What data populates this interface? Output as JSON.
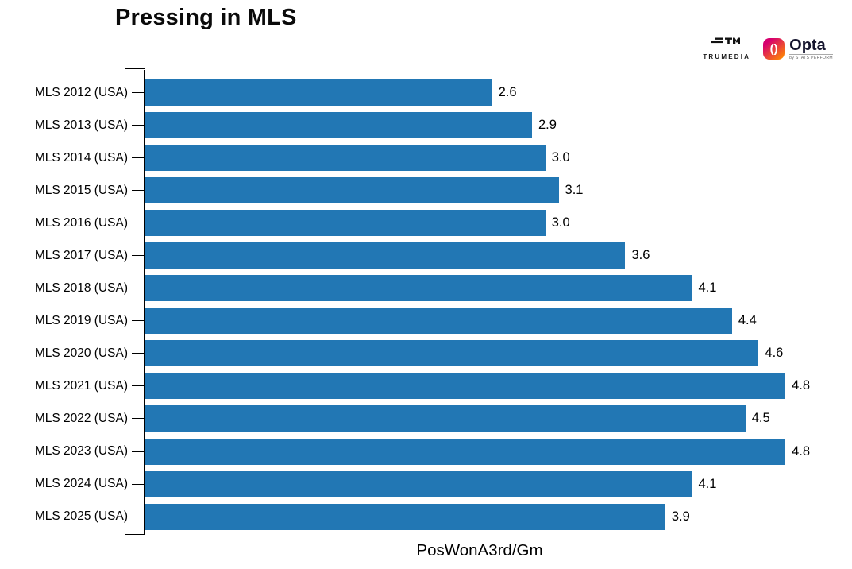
{
  "title": "Pressing in MLS",
  "branding": {
    "trumedia": {
      "name": "TRUMEDIA"
    },
    "opta": {
      "name": "Opta",
      "byline": "by STATS PERFORM",
      "badge_glyph": "()",
      "gradient_start": "#d6006f",
      "gradient_end": "#ff8a00"
    }
  },
  "chart_data": {
    "type": "bar",
    "orientation": "horizontal",
    "title": "Pressing in MLS",
    "xlabel": "PosWonA3rd/Gm",
    "categories": [
      "MLS 2012 (USA)",
      "MLS 2013 (USA)",
      "MLS 2014 (USA)",
      "MLS 2015 (USA)",
      "MLS 2016 (USA)",
      "MLS 2017 (USA)",
      "MLS 2018 (USA)",
      "MLS 2019 (USA)",
      "MLS 2020 (USA)",
      "MLS 2021 (USA)",
      "MLS 2022 (USA)",
      "MLS 2023 (USA)",
      "MLS 2024 (USA)",
      "MLS 2025 (USA)"
    ],
    "values": [
      2.6,
      2.9,
      3.0,
      3.1,
      3.0,
      3.6,
      4.1,
      4.4,
      4.6,
      4.8,
      4.5,
      4.8,
      4.1,
      3.9
    ],
    "value_labels": [
      "2.6",
      "2.9",
      "3.0",
      "3.1",
      "3.0",
      "3.6",
      "4.1",
      "4.4",
      "4.6",
      "4.8",
      "4.5",
      "4.8",
      "4.1",
      "3.9"
    ],
    "xlim": [
      0,
      5.3
    ],
    "bar_color": "#2277b4",
    "grid": false,
    "legend": false
  }
}
